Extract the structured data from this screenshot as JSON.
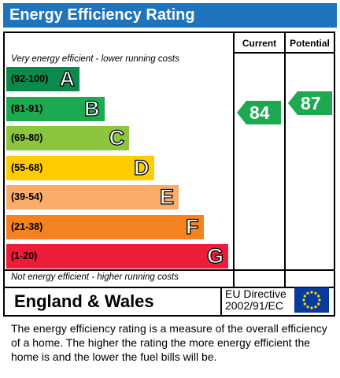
{
  "title": "Energy Efficiency Rating",
  "columns": {
    "current": "Current",
    "potential": "Potential"
  },
  "top_note": "Very energy efficient - lower running costs",
  "bottom_note": "Not energy efficient - higher running costs",
  "region": "England & Wales",
  "directive_line1": "EU Directive",
  "directive_line2": "2002/91/EC",
  "description": "The energy efficiency rating is a measure of the overall efficiency of a home.  The higher the rating the more energy efficient the home is and the lower the fuel bills will be.",
  "chart_data": {
    "type": "bar",
    "bands": [
      {
        "range": "(92-100)",
        "letter": "A",
        "color": "#0b8a4b"
      },
      {
        "range": "(81-91)",
        "letter": "B",
        "color": "#1ca94f"
      },
      {
        "range": "(69-80)",
        "letter": "C",
        "color": "#8cc63f"
      },
      {
        "range": "(55-68)",
        "letter": "D",
        "color": "#ffcc00"
      },
      {
        "range": "(39-54)",
        "letter": "E",
        "color": "#f9ad68"
      },
      {
        "range": "(21-38)",
        "letter": "F",
        "color": "#f58220"
      },
      {
        "range": "(1-20)",
        "letter": "G",
        "color": "#ed1c39"
      }
    ],
    "current": {
      "value": 84,
      "band": "B",
      "color": "#1ca94f"
    },
    "potential": {
      "value": 87,
      "band": "B",
      "color": "#1ca94f"
    }
  }
}
